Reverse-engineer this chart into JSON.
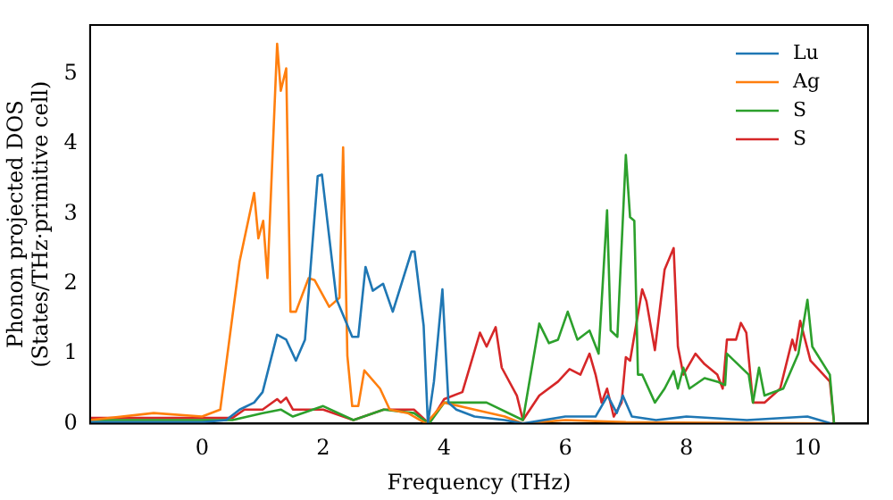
{
  "chart_data": {
    "type": "line",
    "xlabel": "Frequency (THz)",
    "ylabel": "Phonon projected DOS\n(States/THz·primitive cell)",
    "xlim": [
      -1.85,
      11
    ],
    "ylim": [
      0,
      5.7
    ],
    "xticks": [
      0,
      2,
      4,
      6,
      8,
      10
    ],
    "yticks": [
      0,
      1,
      2,
      3,
      4,
      5
    ],
    "grid": false,
    "legend": "top right",
    "marker": "none",
    "line_style": "solid",
    "series": [
      {
        "name": "Lu",
        "color": "#1f77b4",
        "x": [
          -1.85,
          0,
          0.4,
          0.62,
          0.86,
          1.0,
          1.24,
          1.39,
          1.55,
          1.7,
          1.91,
          1.98,
          2.22,
          2.48,
          2.58,
          2.7,
          2.82,
          2.99,
          3.15,
          3.46,
          3.51,
          3.66,
          3.73,
          3.83,
          3.97,
          4.07,
          4.2,
          4.5,
          5.0,
          5.3,
          6.0,
          6.5,
          6.7,
          6.85,
          6.95,
          7.1,
          7.5,
          8.0,
          9.0,
          10.0,
          10.4
        ],
        "values": [
          0.02,
          0.02,
          0.05,
          0.2,
          0.3,
          0.45,
          1.27,
          1.2,
          0.9,
          1.2,
          3.54,
          3.56,
          1.78,
          1.24,
          1.24,
          2.24,
          1.9,
          2.0,
          1.6,
          2.46,
          2.46,
          1.4,
          0.0,
          0.6,
          1.92,
          0.3,
          0.2,
          0.1,
          0.05,
          0.0,
          0.1,
          0.1,
          0.4,
          0.15,
          0.4,
          0.1,
          0.05,
          0.1,
          0.05,
          0.1,
          0.0
        ]
      },
      {
        "name": "Ag",
        "color": "#ff7f0e",
        "x": [
          -1.85,
          -0.8,
          0,
          0.3,
          0.62,
          0.86,
          0.93,
          1.01,
          1.08,
          1.24,
          1.3,
          1.39,
          1.46,
          1.55,
          1.76,
          1.86,
          2.1,
          2.27,
          2.33,
          2.4,
          2.48,
          2.58,
          2.68,
          2.94,
          3.1,
          3.4,
          3.7,
          4.0,
          4.5,
          5.0,
          5.3,
          6.0,
          7.0,
          10.4
        ],
        "values": [
          0.05,
          0.15,
          0.1,
          0.2,
          2.32,
          3.3,
          2.65,
          2.9,
          2.08,
          5.43,
          4.76,
          5.08,
          1.6,
          1.6,
          2.08,
          2.05,
          1.67,
          1.8,
          3.95,
          0.97,
          0.25,
          0.25,
          0.76,
          0.5,
          0.2,
          0.15,
          0.0,
          0.3,
          0.2,
          0.1,
          0.0,
          0.05,
          0.02,
          0.0
        ]
      },
      {
        "name": "S",
        "color": "#2ca02c",
        "x": [
          -1.85,
          0.5,
          1.0,
          1.3,
          1.5,
          2.0,
          2.5,
          3.0,
          3.5,
          3.75,
          4.0,
          4.2,
          4.7,
          5.3,
          5.57,
          5.73,
          5.88,
          6.04,
          6.2,
          6.4,
          6.55,
          6.69,
          6.75,
          6.86,
          7.0,
          7.07,
          7.14,
          7.2,
          7.27,
          7.48,
          7.64,
          7.79,
          7.86,
          7.95,
          8.05,
          8.3,
          8.51,
          8.64,
          8.67,
          9.03,
          9.1,
          9.2,
          9.29,
          9.6,
          9.85,
          10.0,
          10.08,
          10.37,
          10.44
        ],
        "values": [
          0.05,
          0.05,
          0.15,
          0.2,
          0.1,
          0.25,
          0.05,
          0.2,
          0.15,
          0.0,
          0.3,
          0.3,
          0.3,
          0.05,
          1.43,
          1.15,
          1.2,
          1.6,
          1.2,
          1.33,
          1.0,
          3.05,
          1.33,
          1.24,
          3.84,
          2.95,
          2.9,
          0.7,
          0.7,
          0.3,
          0.5,
          0.75,
          0.5,
          0.8,
          0.5,
          0.65,
          0.6,
          0.55,
          1.0,
          0.7,
          0.3,
          0.8,
          0.4,
          0.5,
          1.0,
          1.77,
          1.1,
          0.7,
          0.0
        ]
      },
      {
        "name": "S",
        "color": "#d62728",
        "x": [
          -1.85,
          0.5,
          0.7,
          1.0,
          1.24,
          1.3,
          1.39,
          1.5,
          2.0,
          2.5,
          3.0,
          3.5,
          3.75,
          4.0,
          4.3,
          4.59,
          4.7,
          4.85,
          4.95,
          5.2,
          5.3,
          5.57,
          5.88,
          6.07,
          6.25,
          6.4,
          6.5,
          6.6,
          6.69,
          6.8,
          6.93,
          7.0,
          7.07,
          7.27,
          7.34,
          7.48,
          7.64,
          7.79,
          7.86,
          7.95,
          8.15,
          8.3,
          8.51,
          8.6,
          8.67,
          8.82,
          8.9,
          8.99,
          9.1,
          9.29,
          9.55,
          9.75,
          9.8,
          9.88,
          10.05,
          10.37,
          10.44
        ],
        "values": [
          0.08,
          0.08,
          0.2,
          0.2,
          0.35,
          0.3,
          0.37,
          0.2,
          0.2,
          0.05,
          0.2,
          0.2,
          0.0,
          0.35,
          0.45,
          1.3,
          1.1,
          1.38,
          0.8,
          0.4,
          0.05,
          0.4,
          0.6,
          0.78,
          0.7,
          1.0,
          0.7,
          0.3,
          0.5,
          0.1,
          0.3,
          0.95,
          0.9,
          1.92,
          1.75,
          1.05,
          2.2,
          2.51,
          1.1,
          0.7,
          1.0,
          0.85,
          0.7,
          0.5,
          1.2,
          1.2,
          1.44,
          1.3,
          0.3,
          0.3,
          0.5,
          1.2,
          1.05,
          1.47,
          0.9,
          0.6,
          0.0
        ]
      }
    ]
  }
}
